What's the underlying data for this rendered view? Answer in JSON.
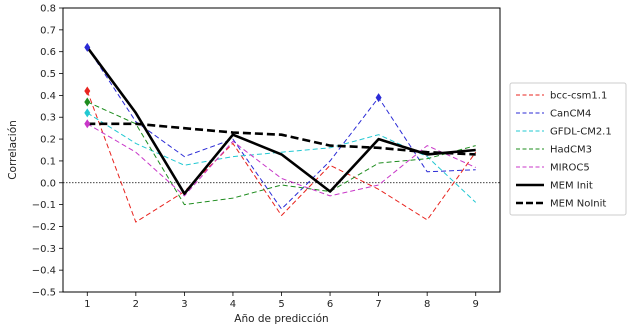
{
  "chart_data": {
    "type": "line",
    "xlabel": "Año de predicción",
    "ylabel": "Correlación",
    "x": [
      1,
      2,
      3,
      4,
      5,
      6,
      7,
      8,
      9
    ],
    "xlim": [
      0.5,
      9.5
    ],
    "ylim": [
      -0.5,
      0.8
    ],
    "xticks": [
      "1",
      "2",
      "3",
      "4",
      "5",
      "6",
      "7",
      "8",
      "9"
    ],
    "yticks": [
      "−0.5",
      "−0.4",
      "−0.3",
      "−0.2",
      "−0.1",
      "0.0",
      "0.1",
      "0.2",
      "0.3",
      "0.4",
      "0.5",
      "0.6",
      "0.7",
      "0.8"
    ],
    "yticks_values": [
      -0.5,
      -0.4,
      -0.3,
      -0.2,
      -0.1,
      0.0,
      0.1,
      0.2,
      0.3,
      0.4,
      0.5,
      0.6,
      0.7,
      0.8
    ],
    "grid": false,
    "zero_line": true,
    "legend_position": "outside-right",
    "series": [
      {
        "name": "bcc-csm1.1",
        "color": "#e8241f",
        "style": "dashed",
        "width": 1,
        "marker_year1": 0.42,
        "values": [
          0.42,
          -0.18,
          -0.04,
          0.18,
          -0.15,
          0.08,
          -0.03,
          -0.17,
          0.14
        ]
      },
      {
        "name": "CanCM4",
        "color": "#2b2bd6",
        "style": "dashed",
        "width": 1,
        "marker_year1": 0.62,
        "marker_year7": 0.39,
        "values": [
          0.62,
          0.28,
          0.12,
          0.2,
          -0.12,
          0.1,
          0.39,
          0.05,
          0.06
        ]
      },
      {
        "name": "GFDL-CM2.1",
        "color": "#22c8d2",
        "style": "dashed",
        "width": 1,
        "marker_year1": 0.32,
        "values": [
          0.32,
          0.18,
          0.08,
          0.12,
          0.14,
          0.16,
          0.22,
          0.12,
          -0.09
        ]
      },
      {
        "name": "HadCM3",
        "color": "#1e8c1e",
        "style": "dashed",
        "width": 1,
        "marker_year1": 0.37,
        "values": [
          0.37,
          0.27,
          -0.1,
          -0.07,
          -0.01,
          -0.04,
          0.09,
          0.11,
          0.17
        ]
      },
      {
        "name": "MIROC5",
        "color": "#c837c8",
        "style": "dashed",
        "width": 1,
        "marker_year1": 0.27,
        "values": [
          0.27,
          0.14,
          -0.06,
          0.19,
          0.02,
          -0.06,
          -0.01,
          0.17,
          0.07
        ]
      },
      {
        "name": "MEM Init",
        "color": "#000000",
        "style": "solid",
        "width": 2.6,
        "values": [
          0.62,
          0.32,
          -0.05,
          0.22,
          0.13,
          -0.04,
          0.2,
          0.13,
          0.15
        ]
      },
      {
        "name": "MEM NoInit",
        "color": "#000000",
        "style": "dashed",
        "width": 2.6,
        "values": [
          0.27,
          0.27,
          0.25,
          0.23,
          0.22,
          0.17,
          0.16,
          0.14,
          0.13
        ]
      }
    ]
  }
}
